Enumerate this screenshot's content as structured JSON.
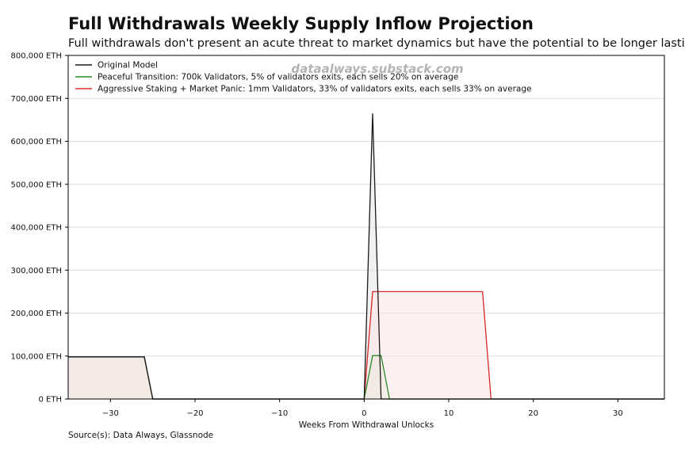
{
  "chart_data": {
    "type": "line",
    "title": "Full Withdrawals Weekly Supply Inflow Projection",
    "subtitle": "Full withdrawals don't present an acute threat to market dynamics but have the potential to be longer lasting.",
    "watermark": "dataalways.substack.com",
    "xlabel": "Weeks From Withdrawal Unlocks",
    "ylabel": "",
    "source": "Source(s): Data Always, Glassnode",
    "xlim": [
      -35,
      35.5
    ],
    "ylim": [
      0,
      800000
    ],
    "xticks": [
      -30,
      -20,
      -10,
      0,
      10,
      20,
      30
    ],
    "xtick_labels": [
      "−30",
      "−20",
      "−10",
      "0",
      "10",
      "20",
      "30"
    ],
    "yticks": [
      0,
      100000,
      200000,
      300000,
      400000,
      500000,
      600000,
      700000,
      800000
    ],
    "ytick_labels": [
      "0 ETH",
      "100,000 ETH",
      "200,000 ETH",
      "300,000 ETH",
      "400,000 ETH",
      "500,000 ETH",
      "600,000 ETH",
      "700,000 ETH",
      "800,000 ETH"
    ],
    "grid": "horizontal",
    "legend_position": "top-left",
    "series": [
      {
        "name": "Original Model",
        "color": "#1a1a1a",
        "fill": "#e6e6e6",
        "x": [
          -35,
          -26,
          -25,
          0,
          1,
          2,
          35.5
        ],
        "y": [
          98000,
          98000,
          0,
          0,
          665000,
          0,
          0
        ]
      },
      {
        "name": "Peaceful Transition: 700k Validators, 5% of validators exits, each sells 20% on average",
        "color": "#2a8a2a",
        "fill": "#dfeedd",
        "x": [
          -35,
          -26,
          -25,
          0,
          1,
          2,
          3,
          35.5
        ],
        "y": [
          98000,
          98000,
          0,
          0,
          101000,
          101000,
          0,
          0
        ]
      },
      {
        "name": "Aggressive Staking + Market Panic: 1mm Validators, 33% of validators exits, each sells 33% on average",
        "color": "#d62728",
        "fill": "#fde6e6",
        "x": [
          -35,
          -26,
          -25,
          0,
          1,
          14,
          15,
          35.5
        ],
        "y": [
          98000,
          98000,
          0,
          0,
          250000,
          250000,
          0,
          0
        ]
      }
    ]
  }
}
